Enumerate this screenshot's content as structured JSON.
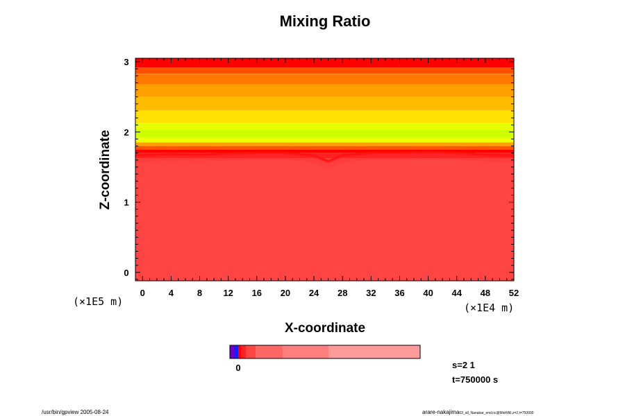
{
  "chart_data": {
    "type": "heatmap",
    "title": "Mixing Ratio",
    "xlabel": "X-coordinate",
    "ylabel": "Z-coordinate",
    "x_unit_label": "(×1E4 m)",
    "y_unit_label": "(×1E5 m)",
    "x_ticks": [
      "0",
      "4",
      "8",
      "12",
      "16",
      "20",
      "24",
      "28",
      "32",
      "36",
      "40",
      "44",
      "48",
      "52"
    ],
    "y_ticks": [
      "0",
      "1",
      "2",
      "3"
    ],
    "xlim": [
      -1,
      52
    ],
    "ylim": [
      -0.12,
      3.05
    ],
    "x_minor_step": 1,
    "y_minor_step": 0.1,
    "layers": [
      {
        "z_bottom": -0.12,
        "z_top": 1.62,
        "color": "#ff4444"
      },
      {
        "z_bottom": 1.62,
        "z_top": 1.7,
        "color": "#ff2020"
      },
      {
        "z_bottom": 1.7,
        "z_top": 1.75,
        "color": "#ff0000"
      },
      {
        "z_bottom": 1.75,
        "z_top": 1.8,
        "color": "#ff5500"
      },
      {
        "z_bottom": 1.8,
        "z_top": 1.85,
        "color": "#ffa000"
      },
      {
        "z_bottom": 1.85,
        "z_top": 1.92,
        "color": "#f0ff00"
      },
      {
        "z_bottom": 1.92,
        "z_top": 2.03,
        "color": "#ccff00"
      },
      {
        "z_bottom": 2.03,
        "z_top": 2.13,
        "color": "#e6ff00"
      },
      {
        "z_bottom": 2.13,
        "z_top": 2.31,
        "color": "#ffe000"
      },
      {
        "z_bottom": 2.31,
        "z_top": 2.5,
        "color": "#ffbb00"
      },
      {
        "z_bottom": 2.5,
        "z_top": 2.68,
        "color": "#ffa000"
      },
      {
        "z_bottom": 2.68,
        "z_top": 2.83,
        "color": "#ff7800"
      },
      {
        "z_bottom": 2.83,
        "z_top": 2.92,
        "color": "#ff5000"
      },
      {
        "z_bottom": 2.92,
        "z_top": 3.05,
        "color": "#ff0000"
      }
    ],
    "interface_profile": {
      "x": [
        -1,
        4,
        8,
        12,
        16,
        20,
        24,
        26,
        28,
        32,
        36,
        40,
        44,
        48,
        52
      ],
      "z": [
        1.66,
        1.68,
        1.67,
        1.69,
        1.7,
        1.7,
        1.66,
        1.58,
        1.66,
        1.7,
        1.7,
        1.71,
        1.7,
        1.67,
        1.66
      ]
    },
    "colorbar": {
      "label": "0",
      "colors": [
        "#6a00c8",
        "#1a1aff",
        "#ff0000",
        "#ff2222",
        "#ff4444",
        "#ff6666",
        "#ff7f7f",
        "#ff9a9a"
      ],
      "widths": [
        7,
        5,
        4,
        7,
        14,
        39,
        66,
        132
      ]
    },
    "annotations": {
      "s": "s=2 1",
      "t": "t=750000 s"
    }
  },
  "footer": {
    "left": "/usr/bin/gpview 2005-08-24",
    "right_main": "arare-nakajima",
    "right_small": "03_all_Nanabar_end.nc@MixRAll,z=2,t=750000"
  }
}
